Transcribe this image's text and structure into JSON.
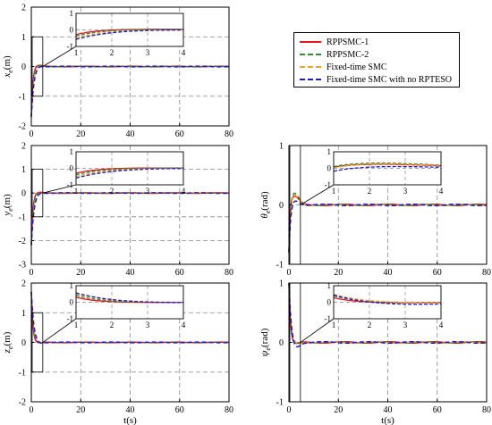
{
  "legend": [
    {
      "name": "RPPSMC-1",
      "color": "#e8141c",
      "dash": "solid"
    },
    {
      "name": "RPPSMC-2",
      "color": "#2e8b2e",
      "dash": "dashed"
    },
    {
      "name": "Fixed-time SMC",
      "color": "#f0a030",
      "dash": "dashed"
    },
    {
      "name": "Fixed-time SMC with no RPTESO",
      "color": "#1a1ad6",
      "dash": "dashed"
    }
  ],
  "chart_data": [
    {
      "id": "xe",
      "type": "line",
      "xlabel": "",
      "ylabel": "x_e(m)",
      "xlim": [
        0,
        80
      ],
      "ylim": [
        -2,
        2
      ],
      "xticks": [
        0,
        20,
        40,
        60,
        80
      ],
      "yticks": [
        -2,
        -1,
        0,
        1,
        2
      ],
      "inset": {
        "xlim": [
          1,
          4
        ],
        "ylim": [
          -1,
          1
        ],
        "xticks": [
          1,
          2,
          3,
          4
        ],
        "yticks": [
          -1,
          0,
          1
        ]
      }
    },
    {
      "id": "ye",
      "type": "line",
      "xlabel": "",
      "ylabel": "y_e(m)",
      "xlim": [
        0,
        80
      ],
      "ylim": [
        -3,
        2
      ],
      "xticks": [
        0,
        20,
        40,
        60,
        80
      ],
      "yticks": [
        -3,
        -2,
        -1,
        0,
        1,
        2
      ],
      "inset": {
        "xlim": [
          1,
          4
        ],
        "ylim": [
          -1,
          1
        ],
        "xticks": [
          1,
          2,
          3,
          4
        ],
        "yticks": [
          -1,
          0,
          1
        ]
      }
    },
    {
      "id": "ze",
      "type": "line",
      "xlabel": "t(s)",
      "ylabel": "z_e(m)",
      "xlim": [
        0,
        80
      ],
      "ylim": [
        -2,
        2
      ],
      "xticks": [
        0,
        20,
        40,
        60,
        80
      ],
      "yticks": [
        -2,
        -1,
        0,
        1,
        2
      ],
      "inset": {
        "xlim": [
          1,
          4
        ],
        "ylim": [
          -1,
          1
        ],
        "xticks": [
          1,
          2,
          3,
          4
        ],
        "yticks": [
          -1,
          0,
          1
        ]
      }
    },
    {
      "id": "theta",
      "type": "line",
      "xlabel": "",
      "ylabel": "θ_e(rad)",
      "xlim": [
        0,
        80
      ],
      "ylim": [
        -1,
        1
      ],
      "xticks": [
        0,
        20,
        40,
        60,
        80
      ],
      "yticks": [
        -1,
        0,
        1
      ],
      "inset": {
        "xlim": [
          1,
          4
        ],
        "ylim": [
          -1,
          1
        ],
        "xticks": [
          1,
          2,
          3,
          4
        ],
        "yticks": [
          -1,
          0,
          1
        ]
      }
    },
    {
      "id": "psi",
      "type": "line",
      "xlabel": "t(s)",
      "ylabel": "ψ_e(rad)",
      "xlim": [
        0,
        80
      ],
      "ylim": [
        -1,
        1
      ],
      "xticks": [
        0,
        20,
        40,
        60,
        80
      ],
      "yticks": [
        -1,
        0,
        1
      ],
      "inset": {
        "xlim": [
          1,
          4
        ],
        "ylim": [
          -1,
          1
        ],
        "xticks": [
          1,
          2,
          3,
          4
        ],
        "yticks": [
          -1,
          0,
          1
        ]
      }
    }
  ]
}
